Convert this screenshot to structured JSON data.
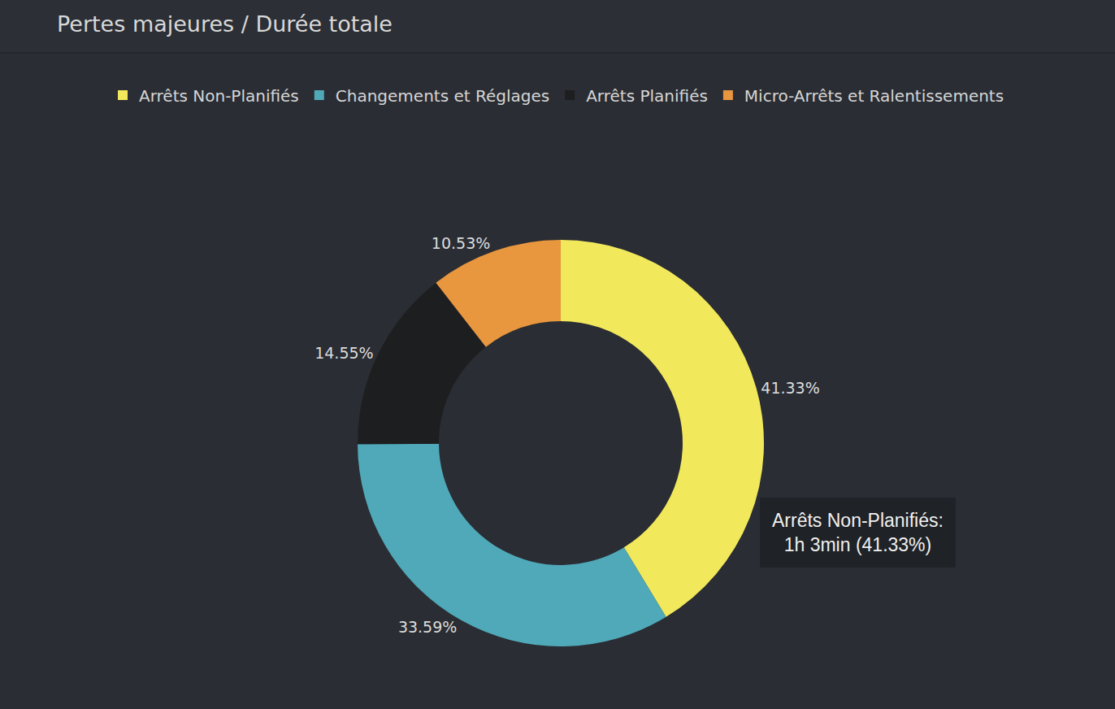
{
  "chart_data": {
    "type": "pie",
    "title": "Pertes majeures / Durée totale",
    "categories": [
      "Arrêts Non-Planifiés",
      "Changements et Réglages",
      "Arrêts Planifiés",
      "Micro-Arrêts et Ralentissements"
    ],
    "values": [
      41.33,
      33.59,
      14.55,
      10.53
    ],
    "value_labels": [
      "41.33%",
      "33.59%",
      "14.55%",
      "10.53%"
    ],
    "colors": [
      "#f2e85c",
      "#4fa9b9",
      "#1d1e20",
      "#e8973e"
    ],
    "legend": "top",
    "data_labels": true,
    "annotations": [
      {
        "text": "Arrêts Non-Planifiés:\n1h 3min (41.33%)"
      }
    ]
  }
}
